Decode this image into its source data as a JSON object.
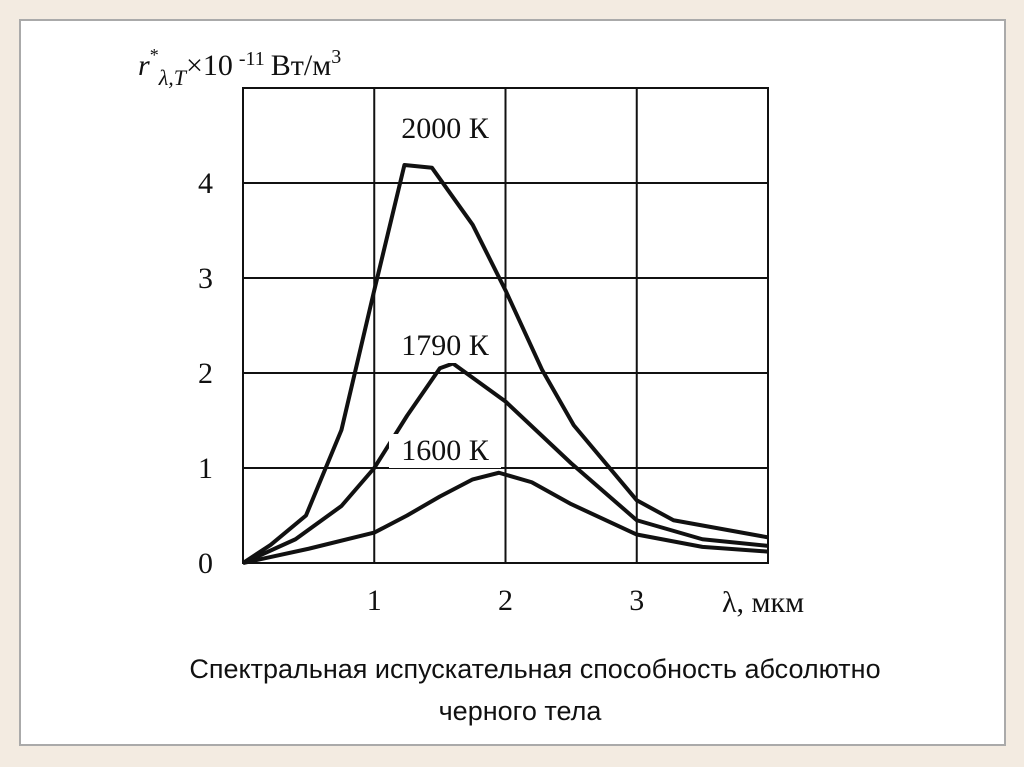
{
  "chart_data": {
    "type": "line",
    "y_label_parts": [
      "r",
      "*",
      "λ,T",
      "×10",
      "-11",
      "Вт/м",
      "3"
    ],
    "x_label": "λ, мкм",
    "caption": [
      "Спектральная испускательная способность абсолютно",
      "черного тела"
    ],
    "xlim": [
      0,
      4
    ],
    "ylim": [
      0,
      5
    ],
    "xticks": [
      1,
      2,
      3
    ],
    "yticks": [
      0,
      1,
      2,
      3,
      4
    ],
    "grid": true,
    "series": [
      {
        "name": "2000 К",
        "color": "#111111",
        "x": [
          0,
          0.21,
          0.48,
          0.75,
          1.0,
          1.23,
          1.44,
          1.75,
          2.0,
          2.28,
          2.52,
          3.0,
          3.28,
          4.0
        ],
        "values": [
          0,
          0.19,
          0.5,
          1.4,
          2.87,
          4.19,
          4.16,
          3.56,
          2.87,
          2.03,
          1.45,
          0.66,
          0.45,
          0.27
        ]
      },
      {
        "name": "1790 К",
        "color": "#111111",
        "x": [
          0,
          0.4,
          0.75,
          1.0,
          1.25,
          1.5,
          1.6,
          1.75,
          2.0,
          2.5,
          3.0,
          3.5,
          4.0
        ],
        "values": [
          0,
          0.25,
          0.6,
          1.0,
          1.55,
          2.05,
          2.1,
          1.95,
          1.7,
          1.05,
          0.45,
          0.25,
          0.18
        ]
      },
      {
        "name": "1600 К",
        "color": "#111111",
        "x": [
          0,
          0.5,
          1.0,
          1.25,
          1.5,
          1.75,
          1.95,
          2.2,
          2.5,
          3.0,
          3.5,
          4.0
        ],
        "values": [
          0,
          0.15,
          0.32,
          0.5,
          0.7,
          0.88,
          0.95,
          0.85,
          0.62,
          0.3,
          0.17,
          0.12
        ]
      }
    ]
  }
}
